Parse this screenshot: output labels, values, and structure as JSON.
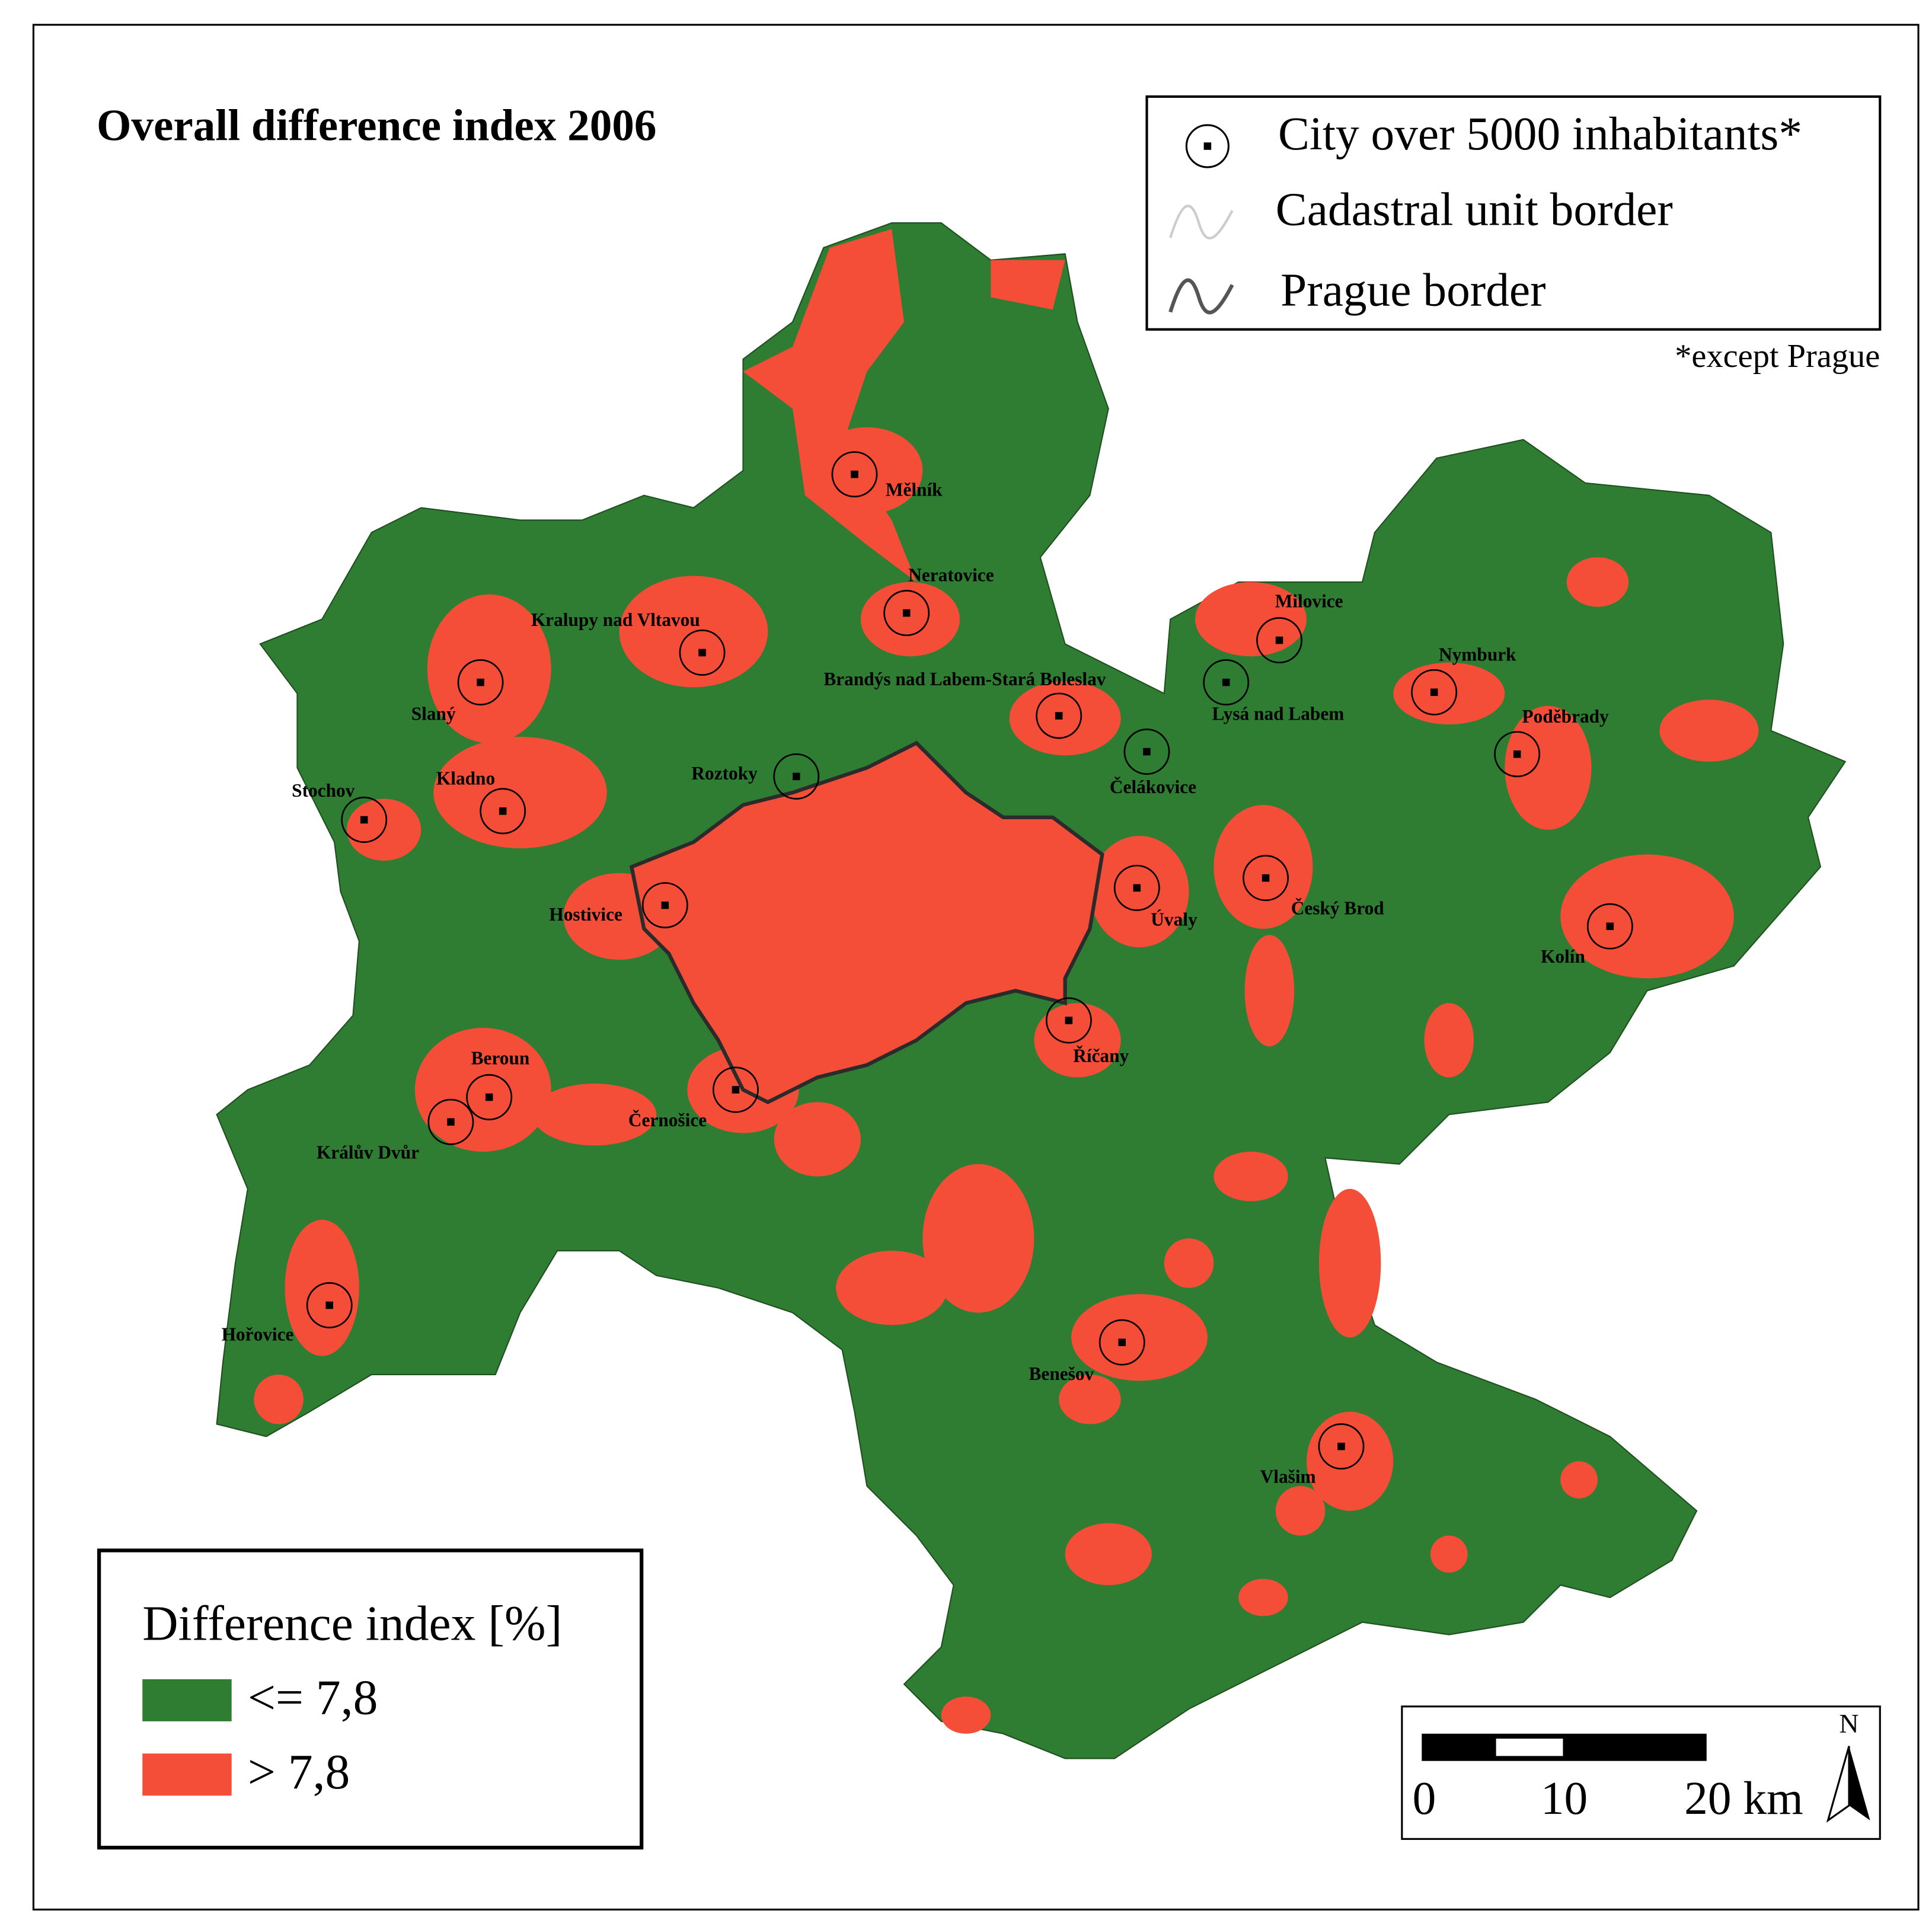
{
  "title": "Overall difference index 2006",
  "symbol_legend": {
    "items": [
      "City over 5000 inhabitants*",
      "Cadastral unit border",
      "Prague border"
    ],
    "footnote": "*except Prague"
  },
  "class_legend": {
    "title": "Difference index [%]",
    "classes": [
      {
        "label": "<= 7,8",
        "color": "#2e7d32"
      },
      {
        "label": "> 7,8",
        "color": "#f44e38"
      }
    ]
  },
  "cities": [
    "Mělník",
    "Neratovice",
    "Kralupy nad Vltavou",
    "Slaný",
    "Brandýs nad Labem-Stará Boleslav",
    "Milovice",
    "Lysá nad Labem",
    "Nymburk",
    "Poděbrady",
    "Čelákovice",
    "Roztoky",
    "Kladno",
    "Stochov",
    "Hostivice",
    "Úvaly",
    "Český Brod",
    "Kolín",
    "Říčany",
    "Beroun",
    "Králův Dvůr",
    "Černošice",
    "Hořovice",
    "Benešov",
    "Vlašim"
  ],
  "scale_bar": {
    "labels": [
      "0",
      "10",
      "20 km"
    ]
  },
  "north": "N"
}
